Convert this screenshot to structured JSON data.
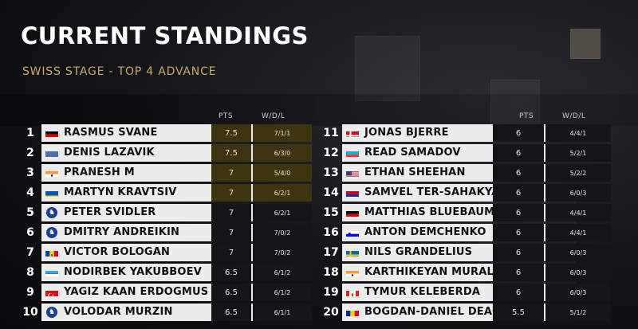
{
  "header": {
    "title": "CURRENT STANDINGS",
    "subtitle": "SWISS STAGE - TOP 4 ADVANCE"
  },
  "columns": {
    "pts": "PTS",
    "wdl": "W/D/L"
  },
  "colors": {
    "advance_highlight": "#3d3410",
    "subtitle_gold": "#c8a96b",
    "row_bar": "#ececec"
  },
  "left": [
    {
      "rank": "1",
      "name": "RASMUS SVANE",
      "flag": "germany-flag",
      "pts": "7.5",
      "wdl": "7/1/1",
      "advance": true
    },
    {
      "rank": "2",
      "name": "DENIS LAZAVIK",
      "flag": "fide-blue-flag",
      "pts": "7.5",
      "wdl": "6/3/0",
      "advance": true
    },
    {
      "rank": "3",
      "name": "PRANESH M",
      "flag": "india-flag",
      "pts": "7",
      "wdl": "5/4/0",
      "advance": true
    },
    {
      "rank": "4",
      "name": "MARTYN KRAVTSIV",
      "flag": "ukraine-flag",
      "pts": "7",
      "wdl": "6/2/1",
      "advance": true
    },
    {
      "rank": "5",
      "name": "PETER SVIDLER",
      "flag": "fide-icon",
      "pts": "7",
      "wdl": "6/2/1",
      "advance": false
    },
    {
      "rank": "6",
      "name": "DMITRY ANDREIKIN",
      "flag": "fide-icon",
      "pts": "7",
      "wdl": "7/0/2",
      "advance": false
    },
    {
      "rank": "7",
      "name": "VICTOR BOLOGAN",
      "flag": "moldova-flag",
      "pts": "7",
      "wdl": "7/0/2",
      "advance": false
    },
    {
      "rank": "8",
      "name": "NODIRBEK YAKUBBOEV",
      "flag": "uzbekistan-flag",
      "pts": "6.5",
      "wdl": "6/1/2",
      "advance": false
    },
    {
      "rank": "9",
      "name": "YAGIZ KAAN ERDOGMUS",
      "flag": "turkey-flag",
      "pts": "6.5",
      "wdl": "6/1/2",
      "advance": false
    },
    {
      "rank": "10",
      "name": "VOLODAR MURZIN",
      "flag": "fide-icon",
      "pts": "6.5",
      "wdl": "6/1/1",
      "advance": false
    }
  ],
  "right": [
    {
      "rank": "11",
      "name": "JONAS BJERRE",
      "flag": "denmark-flag",
      "pts": "6",
      "wdl": "4/4/1"
    },
    {
      "rank": "12",
      "name": "READ SAMADOV",
      "flag": "azerbaijan-flag",
      "pts": "6",
      "wdl": "5/2/1"
    },
    {
      "rank": "13",
      "name": "ETHAN SHEEHAN",
      "flag": "usa-flag",
      "pts": "6",
      "wdl": "5/2/2"
    },
    {
      "rank": "14",
      "name": "SAMVEL TER-SAHAKYAN",
      "flag": "armenia-flag",
      "pts": "6",
      "wdl": "6/0/3"
    },
    {
      "rank": "15",
      "name": "MATTHIAS BLUEBAUM",
      "flag": "germany-flag",
      "pts": "6",
      "wdl": "4/4/1"
    },
    {
      "rank": "16",
      "name": "ANTON DEMCHENKO",
      "flag": "slovenia-flag",
      "pts": "6",
      "wdl": "4/4/1"
    },
    {
      "rank": "17",
      "name": "NILS GRANDELIUS",
      "flag": "sweden-flag",
      "pts": "6",
      "wdl": "6/0/3"
    },
    {
      "rank": "18",
      "name": "KARTHIKEYAN MURALI",
      "flag": "india-flag",
      "pts": "6",
      "wdl": "6/0/3"
    },
    {
      "rank": "19",
      "name": "TYMUR KELEBERDA",
      "flag": "canada-flag",
      "pts": "6",
      "wdl": "6/0/3"
    },
    {
      "rank": "20",
      "name": "BOGDAN-DANIEL DEAC",
      "flag": "romania-flag",
      "pts": "5.5",
      "wdl": "5/1/2"
    }
  ]
}
